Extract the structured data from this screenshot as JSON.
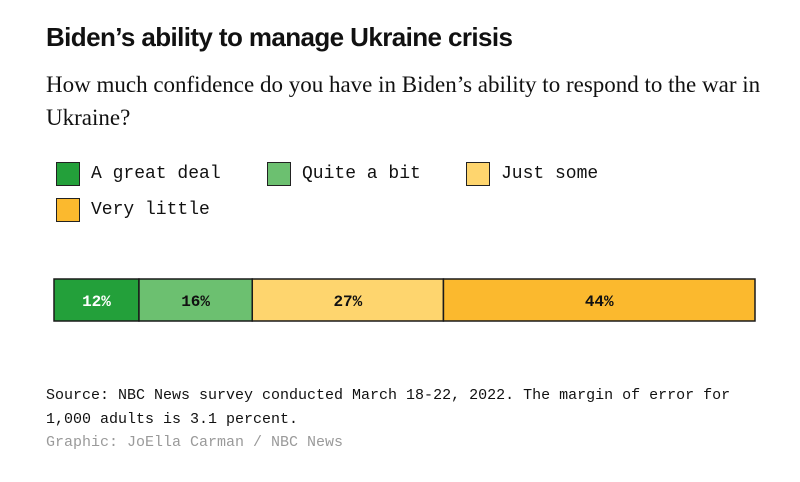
{
  "chart_data": {
    "type": "bar",
    "orientation": "horizontal-stacked",
    "title": "Biden’s ability to manage Ukraine crisis",
    "subtitle": "How much confidence do you have in Biden’s ability to respond to the war in Ukraine?",
    "categories": [
      "A great deal",
      "Quite a bit",
      "Just some",
      "Very little"
    ],
    "values": [
      12,
      16,
      27,
      44
    ],
    "value_labels": [
      "12%",
      "16%",
      "27%",
      "44%"
    ],
    "colors": [
      "#23a03a",
      "#6cc070",
      "#fed56e",
      "#fbb92e"
    ],
    "label_colors": [
      "#ffffff",
      "#111111",
      "#111111",
      "#111111"
    ],
    "unit": "%",
    "xlim": [
      0,
      99
    ],
    "grid": false,
    "legend_position": "top-left"
  },
  "footer": {
    "source": "Source: NBC News survey conducted March 18-22, 2022. The margin of error for 1,000 adults is 3.1 percent.",
    "credit": "Graphic: JoElla Carman / NBC News"
  }
}
